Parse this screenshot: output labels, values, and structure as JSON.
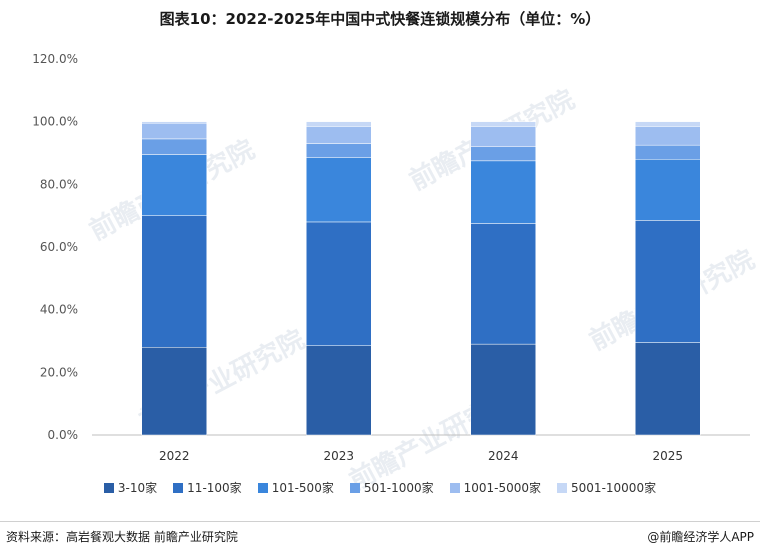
{
  "title": "图表10：2022-2025年中国中式快餐连锁规模分布（单位：%）",
  "watermark_text": "前瞻产业研究院",
  "source_text": "资料来源：高岩餐观大数据 前瞻产业研究院",
  "brand_text": "@前瞻经济学人APP",
  "chart_data": {
    "type": "bar",
    "stacked": true,
    "categories": [
      "2022",
      "2023",
      "2024",
      "2025"
    ],
    "ylim": [
      0,
      120
    ],
    "yticks": [
      "0.0%",
      "20.0%",
      "40.0%",
      "60.0%",
      "80.0%",
      "100.0%",
      "120.0%"
    ],
    "grid": false,
    "legend_position": "bottom",
    "series": [
      {
        "name": "3-10家",
        "color": "#2a5ea6",
        "values": [
          28,
          28.5,
          29,
          29.5
        ]
      },
      {
        "name": "11-100家",
        "color": "#2f6fc4",
        "values": [
          42,
          39.5,
          38.5,
          39
        ]
      },
      {
        "name": "101-500家",
        "color": "#3a86dc",
        "values": [
          19.5,
          20.5,
          20,
          19.5
        ]
      },
      {
        "name": "501-1000家",
        "color": "#6a9fe6",
        "values": [
          5,
          4.5,
          4.5,
          4.5
        ]
      },
      {
        "name": "1001-5000家",
        "color": "#9dbdf0",
        "values": [
          5,
          5.5,
          6.5,
          6
        ]
      },
      {
        "name": "5001-10000家",
        "color": "#c6d8f6",
        "values": [
          0.5,
          1.5,
          1.5,
          1.5
        ]
      }
    ]
  }
}
